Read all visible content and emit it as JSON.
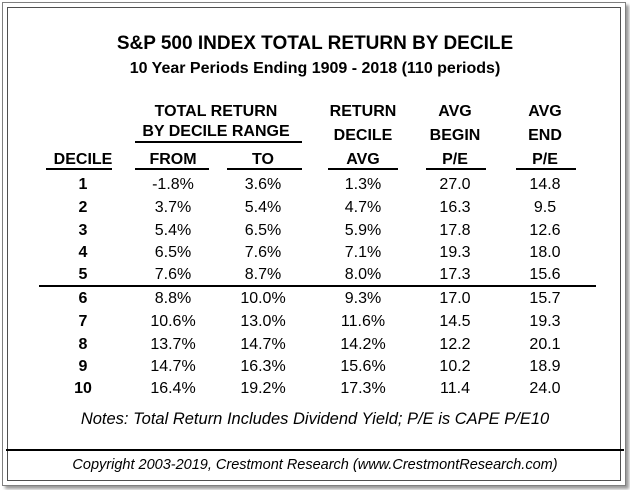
{
  "chart_data": {
    "type": "table",
    "title": "S&P 500 INDEX TOTAL RETURN BY DECILE",
    "subtitle": "10 Year Periods Ending 1909 - 2018 (110 periods)",
    "group_header": [
      "TOTAL RETURN",
      "BY DECILE RANGE"
    ],
    "headers": {
      "decile": "DECILE",
      "from": "FROM",
      "to": "TO",
      "avg": [
        "RETURN",
        "DECILE",
        "AVG"
      ],
      "begin_pe": [
        "AVG",
        "BEGIN",
        "P/E"
      ],
      "end_pe": [
        "AVG",
        "END",
        "P/E"
      ]
    },
    "rows": [
      {
        "decile": "1",
        "from": "-1.8%",
        "to": "3.6%",
        "avg": "1.3%",
        "begin_pe": "27.0",
        "end_pe": "14.8"
      },
      {
        "decile": "2",
        "from": "3.7%",
        "to": "5.4%",
        "avg": "4.7%",
        "begin_pe": "16.3",
        "end_pe": "9.5"
      },
      {
        "decile": "3",
        "from": "5.4%",
        "to": "6.5%",
        "avg": "5.9%",
        "begin_pe": "17.8",
        "end_pe": "12.6"
      },
      {
        "decile": "4",
        "from": "6.5%",
        "to": "7.6%",
        "avg": "7.1%",
        "begin_pe": "19.3",
        "end_pe": "18.0"
      },
      {
        "decile": "5",
        "from": "7.6%",
        "to": "8.7%",
        "avg": "8.0%",
        "begin_pe": "17.3",
        "end_pe": "15.6"
      },
      {
        "decile": "6",
        "from": "8.8%",
        "to": "10.0%",
        "avg": "9.3%",
        "begin_pe": "17.0",
        "end_pe": "15.7"
      },
      {
        "decile": "7",
        "from": "10.6%",
        "to": "13.0%",
        "avg": "11.6%",
        "begin_pe": "14.5",
        "end_pe": "19.3"
      },
      {
        "decile": "8",
        "from": "13.7%",
        "to": "14.7%",
        "avg": "14.2%",
        "begin_pe": "12.2",
        "end_pe": "20.1"
      },
      {
        "decile": "9",
        "from": "14.7%",
        "to": "16.3%",
        "avg": "15.6%",
        "begin_pe": "10.2",
        "end_pe": "18.9"
      },
      {
        "decile": "10",
        "from": "16.4%",
        "to": "19.2%",
        "avg": "17.3%",
        "begin_pe": "11.4",
        "end_pe": "24.0"
      }
    ],
    "notes": "Notes: Total Return Includes Dividend Yield; P/E is CAPE P/E10",
    "copyright": "Copyright 2003-2019, Crestmont Research (www.CrestmontResearch.com)"
  }
}
